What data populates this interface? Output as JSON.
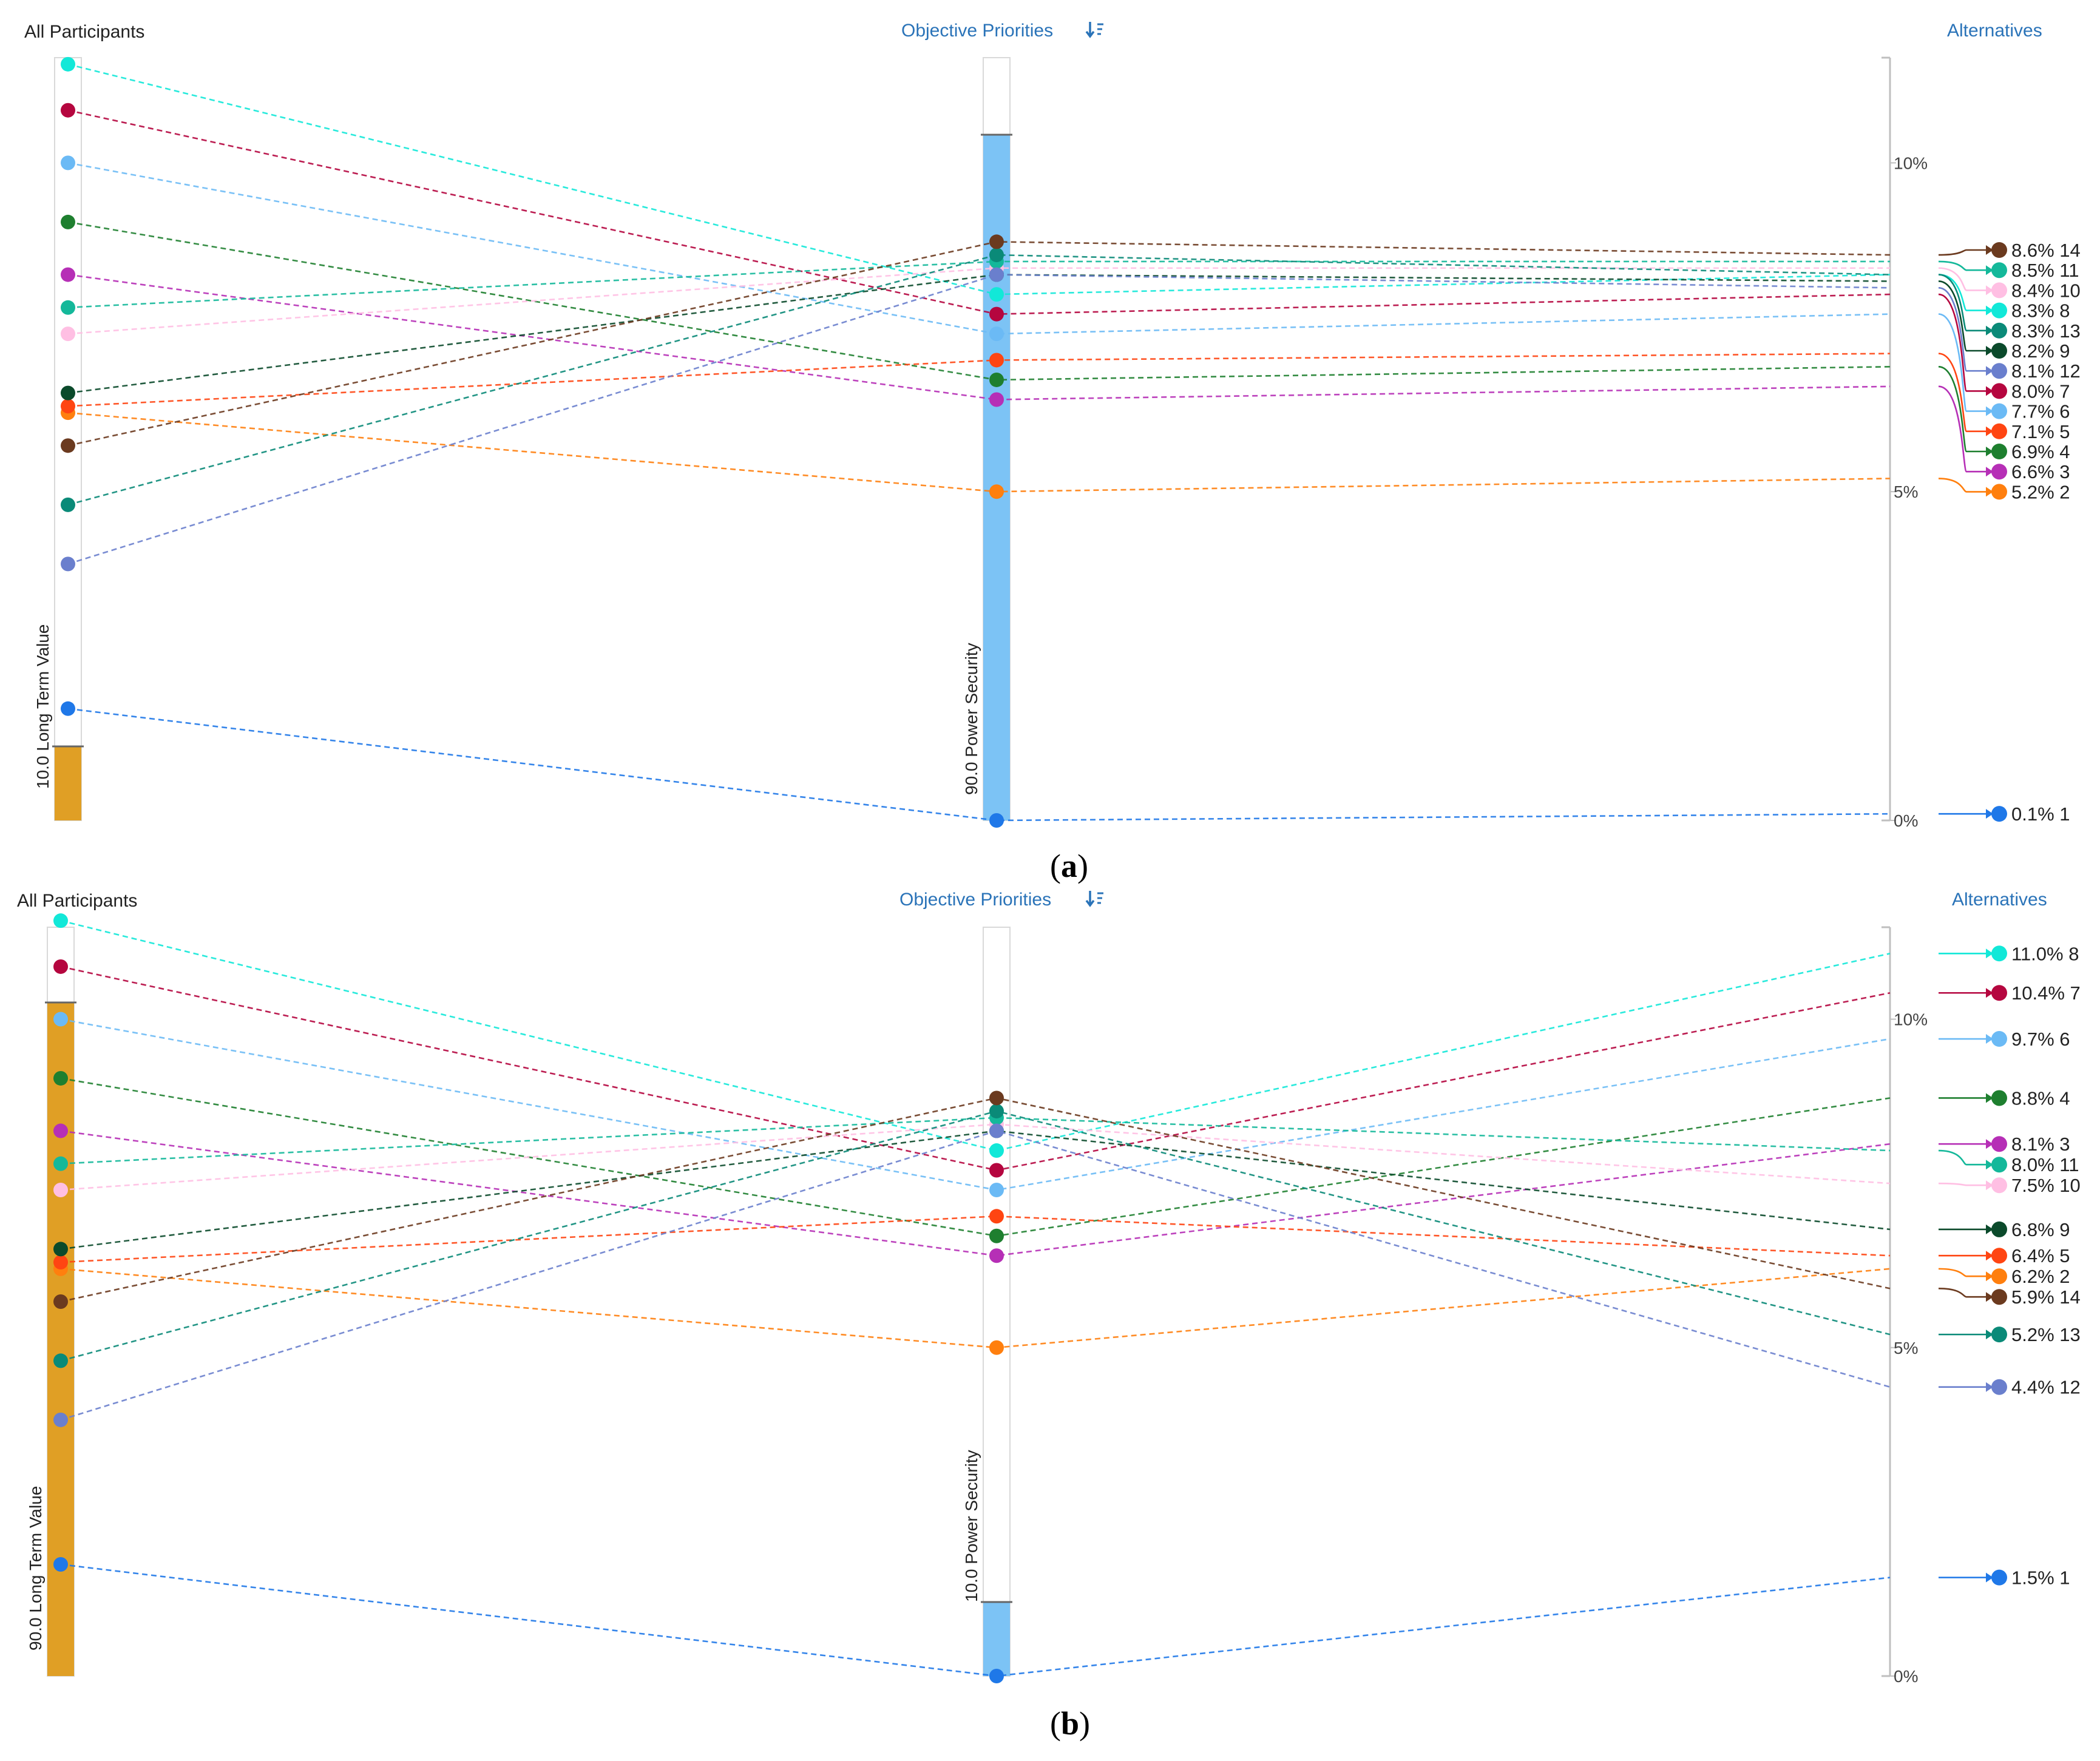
{
  "headers": {
    "participants": "All Participants",
    "objective_priorities": "Objective Priorities",
    "sort_icon": "sort-icon",
    "alternatives": "Alternatives"
  },
  "colors": {
    "1": "#1f78e8",
    "2": "#ff7f0e",
    "3": "#b62fb6",
    "4": "#1e7f2f",
    "5": "#ff4512",
    "6": "#6bbaf5",
    "7": "#b5063f",
    "8": "#12e8d8",
    "9": "#0b4a2b",
    "10": "#ffbfe3",
    "11": "#14b89a",
    "12": "#6a7fcd",
    "13": "#0a8a78",
    "14": "#6b3a1f",
    "gold_bar": "#e09f25",
    "blue_bar": "#7cc3f5"
  },
  "chart_data": [
    {
      "type": "line",
      "panel": "a",
      "caption": "a",
      "ylim": [
        0,
        11.6
      ],
      "yticks": [
        "0%",
        "5%",
        "10%"
      ],
      "axis_left_label": "10.0 Long Term Value",
      "axis_middle_label": "90.0 Power Security",
      "weights": {
        "long_term_value": 10.0,
        "power_security": 90.0
      },
      "series": [
        {
          "name": "1",
          "left": 1.7,
          "middle": 0.0,
          "right": 0.1,
          "label": "0.1%"
        },
        {
          "name": "2",
          "left": 6.2,
          "middle": 5.0,
          "right": 5.2,
          "label": "5.2%"
        },
        {
          "name": "3",
          "left": 8.3,
          "middle": 6.4,
          "right": 6.6,
          "label": "6.6%"
        },
        {
          "name": "4",
          "left": 9.1,
          "middle": 6.7,
          "right": 6.9,
          "label": "6.9%"
        },
        {
          "name": "5",
          "left": 6.3,
          "middle": 7.0,
          "right": 7.1,
          "label": "7.1%"
        },
        {
          "name": "6",
          "left": 10.0,
          "middle": 7.4,
          "right": 7.7,
          "label": "7.7%"
        },
        {
          "name": "7",
          "left": 10.8,
          "middle": 7.7,
          "right": 8.0,
          "label": "8.0%"
        },
        {
          "name": "8",
          "left": 11.5,
          "middle": 8.0,
          "right": 8.3,
          "label": "8.3%"
        },
        {
          "name": "9",
          "left": 6.5,
          "middle": 8.3,
          "right": 8.2,
          "label": "8.2%"
        },
        {
          "name": "10",
          "left": 7.4,
          "middle": 8.4,
          "right": 8.4,
          "label": "8.4%"
        },
        {
          "name": "11",
          "left": 7.8,
          "middle": 8.5,
          "right": 8.5,
          "label": "8.5%"
        },
        {
          "name": "12",
          "left": 3.9,
          "middle": 8.3,
          "right": 8.1,
          "label": "8.1%"
        },
        {
          "name": "13",
          "left": 4.8,
          "middle": 8.6,
          "right": 8.3,
          "label": "8.3%"
        },
        {
          "name": "14",
          "left": 5.7,
          "middle": 8.8,
          "right": 8.6,
          "label": "8.6%"
        }
      ]
    },
    {
      "type": "line",
      "panel": "b",
      "caption": "b",
      "ylim": [
        0,
        11.4
      ],
      "yticks": [
        "0%",
        "5%",
        "10%"
      ],
      "axis_left_label": "90.0 Long Term Value",
      "axis_middle_label": "10.0 Power Security",
      "weights": {
        "long_term_value": 90.0,
        "power_security": 10.0
      },
      "series": [
        {
          "name": "1",
          "left": 1.7,
          "middle": 0.0,
          "right": 1.5,
          "label": "1.5%"
        },
        {
          "name": "2",
          "left": 6.2,
          "middle": 5.0,
          "right": 6.2,
          "label": "6.2%"
        },
        {
          "name": "3",
          "left": 8.3,
          "middle": 6.4,
          "right": 8.1,
          "label": "8.1%"
        },
        {
          "name": "4",
          "left": 9.1,
          "middle": 6.7,
          "right": 8.8,
          "label": "8.8%"
        },
        {
          "name": "5",
          "left": 6.3,
          "middle": 7.0,
          "right": 6.4,
          "label": "6.4%"
        },
        {
          "name": "6",
          "left": 10.0,
          "middle": 7.4,
          "right": 9.7,
          "label": "9.7%"
        },
        {
          "name": "7",
          "left": 10.8,
          "middle": 7.7,
          "right": 10.4,
          "label": "10.4%"
        },
        {
          "name": "8",
          "left": 11.5,
          "middle": 8.0,
          "right": 11.0,
          "label": "11.0%"
        },
        {
          "name": "9",
          "left": 6.5,
          "middle": 8.3,
          "right": 6.8,
          "label": "6.8%"
        },
        {
          "name": "10",
          "left": 7.4,
          "middle": 8.4,
          "right": 7.5,
          "label": "7.5%"
        },
        {
          "name": "11",
          "left": 7.8,
          "middle": 8.5,
          "right": 8.0,
          "label": "8.0%"
        },
        {
          "name": "12",
          "left": 3.9,
          "middle": 8.3,
          "right": 4.4,
          "label": "4.4%"
        },
        {
          "name": "13",
          "left": 4.8,
          "middle": 8.6,
          "right": 5.2,
          "label": "5.2%"
        },
        {
          "name": "14",
          "left": 5.7,
          "middle": 8.8,
          "right": 5.9,
          "label": "5.9%"
        }
      ]
    }
  ]
}
